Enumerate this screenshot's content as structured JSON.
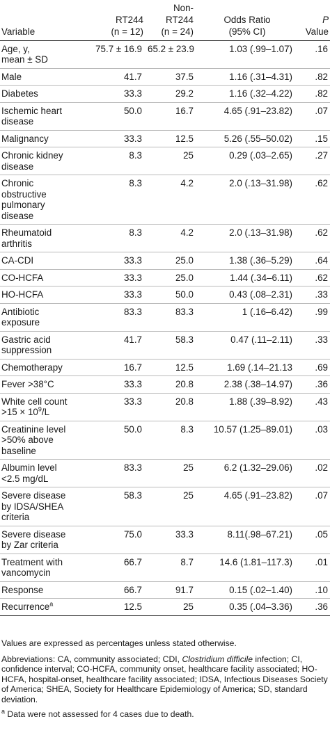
{
  "header": {
    "variable": "Variable",
    "rt244": [
      "RT244",
      "(n = 12)"
    ],
    "nonrt244": [
      "Non-",
      "RT244",
      "(n = 24)"
    ],
    "or": [
      "Odds Ratio",
      "(95% CI)"
    ],
    "p": [
      "P",
      "Value"
    ]
  },
  "rows": [
    {
      "var": [
        "Age, y,",
        "mean ± SD"
      ],
      "rt": "75.7 ± 16.9",
      "non": "65.2 ± 23.9",
      "or": "1.03 (.99–1.07)",
      "p": ".16"
    },
    {
      "var": [
        "Male"
      ],
      "rt": "41.7",
      "non": "37.5",
      "or": "1.16 (.31–4.31)",
      "p": ".82"
    },
    {
      "var": [
        "Diabetes"
      ],
      "rt": "33.3",
      "non": "29.2",
      "or": "1.16 (.32–4.22)",
      "p": ".82"
    },
    {
      "var": [
        "Ischemic heart",
        "disease"
      ],
      "rt": "50.0",
      "non": "16.7",
      "or": "4.65 (.91–23.82)",
      "p": ".07"
    },
    {
      "var": [
        "Malignancy"
      ],
      "rt": "33.3",
      "non": "12.5",
      "or": "5.26 (.55–50.02)",
      "p": ".15"
    },
    {
      "var": [
        "Chronic kidney",
        "disease"
      ],
      "rt": "8.3",
      "non": "25",
      "or": "0.29 (.03–2.65)",
      "p": ".27"
    },
    {
      "var": [
        "Chronic",
        "obstructive",
        "pulmonary",
        "disease"
      ],
      "rt": "8.3",
      "non": "4.2",
      "or": "2.0 (.13–31.98)",
      "p": ".62"
    },
    {
      "var": [
        "Rheumatoid",
        "arthritis"
      ],
      "rt": "8.3",
      "non": "4.2",
      "or": "2.0 (.13–31.98)",
      "p": ".62"
    },
    {
      "var": [
        "CA-CDI"
      ],
      "rt": "33.3",
      "non": "25.0",
      "or": "1.38 (.36–5.29)",
      "p": ".64"
    },
    {
      "var": [
        "CO-HCFA"
      ],
      "rt": "33.3",
      "non": "25.0",
      "or": "1.44 (.34–6.11)",
      "p": ".62"
    },
    {
      "var": [
        "HO-HCFA"
      ],
      "rt": "33.3",
      "non": "50.0",
      "or": "0.43 (.08–2.31)",
      "p": ".33"
    },
    {
      "var": [
        "Antibiotic",
        "exposure"
      ],
      "rt": "83.3",
      "non": "83.3",
      "or": "1 (.16–6.42)",
      "p": ".99"
    },
    {
      "var": [
        "Gastric acid",
        "suppression"
      ],
      "rt": "41.7",
      "non": "58.3",
      "or": "0.47 (.11–2.11)",
      "p": ".33"
    },
    {
      "var": [
        "Chemotherapy"
      ],
      "rt": "16.7",
      "non": "12.5",
      "or": "1.69 (.14–21.13",
      "p": ".69"
    },
    {
      "var": [
        "Fever >38°C"
      ],
      "rt": "33.3",
      "non": "20.8",
      "or": "2.38 (.38–14.97)",
      "p": ".36"
    },
    {
      "var": [
        "White cell count",
        ">15 × 10",
        "9",
        "/L"
      ],
      "sup_row": true,
      "rt": "33.3",
      "non": "20.8",
      "or": "1.88 (.39–8.92)",
      "p": ".43"
    },
    {
      "var": [
        "Creatinine level",
        ">50% above",
        "baseline"
      ],
      "rt": "50.0",
      "non": "8.3",
      "or": "10.57 (1.25–89.01)",
      "p": ".03"
    },
    {
      "var": [
        "Albumin level",
        "<2.5 mg/dL"
      ],
      "rt": "83.3",
      "non": "25",
      "or": "6.2 (1.32–29.06)",
      "p": ".02"
    },
    {
      "var": [
        "Severe disease",
        "by IDSA/SHEA",
        "criteria"
      ],
      "rt": "58.3",
      "non": "25",
      "or": "4.65 (.91–23.82)",
      "p": ".07"
    },
    {
      "var": [
        "Severe disease",
        "by Zar criteria"
      ],
      "rt": "75.0",
      "non": "33.3",
      "or": "8.11(.98–67.21)",
      "p": ".05"
    },
    {
      "var": [
        "Treatment with",
        "vancomycin"
      ],
      "rt": "66.7",
      "non": "8.7",
      "or": "14.6 (1.81–117.3)",
      "p": ".01"
    },
    {
      "var": [
        "Response"
      ],
      "rt": "66.7",
      "non": "91.7",
      "or": "0.15 (.02–1.40)",
      "p": ".10"
    },
    {
      "var": [
        "Recurrence",
        "a"
      ],
      "footnote_row": true,
      "rt": "12.5",
      "non": "25",
      "or": "0.35 (.04–3.36)",
      "p": ".36"
    }
  ],
  "notes": {
    "values": "Values are expressed as percentages unless stated otherwise.",
    "abbr_before": "Abbreviations: CA, community associated; CDI, ",
    "abbr_italic": "Clostridium difficile",
    "abbr_after": " infection; CI, confidence interval; CO-HCFA, community onset, healthcare facility associated; HO-HCFA, hospital-onset, healthcare facility associated; IDSA, Infectious Diseases Society of America; SHEA, Society for Healthcare Epidemiology of America; SD, standard deviation.",
    "footnote_mark": "a",
    "footnote_text": " Data were not assessed for 4 cases due to death."
  }
}
